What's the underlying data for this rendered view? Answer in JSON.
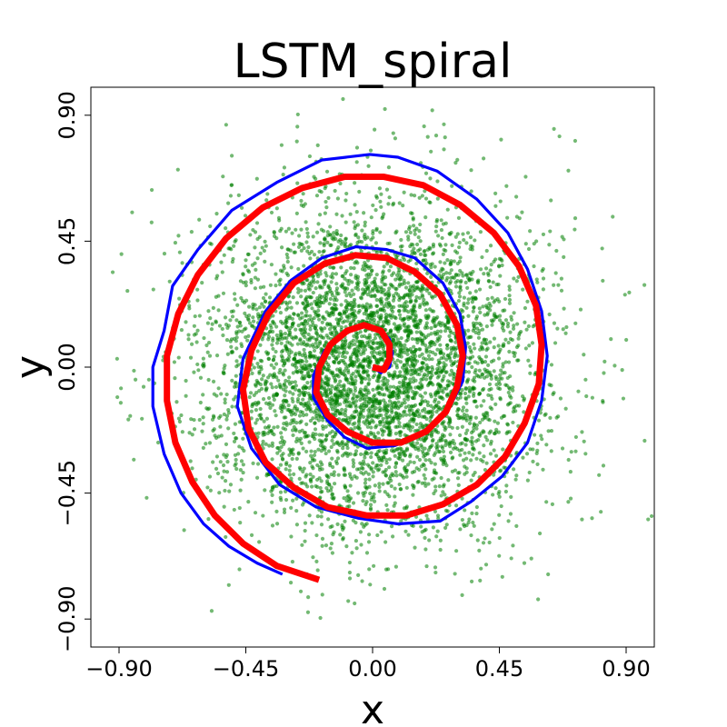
{
  "chart_data": {
    "type": "scatter",
    "title": "LSTM_spiral",
    "xlabel": "x",
    "ylabel": "y",
    "xlim": [
      -1.0,
      1.0
    ],
    "ylim": [
      -1.0,
      1.0
    ],
    "x_ticks": [
      -0.9,
      -0.45,
      0.0,
      0.45,
      0.9
    ],
    "x_tick_labels": [
      "−0.90",
      "−0.45",
      "0.00",
      "0.45",
      "0.90"
    ],
    "y_ticks": [
      -0.9,
      -0.45,
      0.0,
      0.45,
      0.9
    ],
    "y_tick_labels": [
      "−0.90",
      "−0.45",
      "0.00",
      "0.45",
      "0.90"
    ],
    "grid": false,
    "colors": {
      "points": "#008000",
      "predicted": "#0000ff",
      "true": "#ff0000"
    },
    "scatter_points": {
      "count": 5000,
      "distribution": "gaussian",
      "center": [
        0.0,
        0.0
      ],
      "std": [
        0.29,
        0.29
      ],
      "opacity": 0.55
    },
    "series": [
      {
        "type": "line",
        "color": "#0000ff",
        "points": [
          [
            0.0,
            0.0
          ],
          [
            0.03,
            -0.02
          ],
          [
            0.06,
            0.0
          ],
          [
            0.07,
            0.05
          ],
          [
            0.06,
            0.1
          ],
          [
            0.02,
            0.14
          ],
          [
            -0.04,
            0.15
          ],
          [
            -0.1,
            0.12
          ],
          [
            -0.17,
            0.06
          ],
          [
            -0.21,
            -0.03
          ],
          [
            -0.21,
            -0.11
          ],
          [
            -0.16,
            -0.19
          ],
          [
            -0.1,
            -0.25
          ],
          [
            -0.02,
            -0.29
          ],
          [
            0.08,
            -0.28
          ],
          [
            0.18,
            -0.24
          ],
          [
            0.27,
            -0.15
          ],
          [
            0.32,
            -0.05
          ],
          [
            0.33,
            0.07
          ],
          [
            0.31,
            0.19
          ],
          [
            0.25,
            0.3
          ],
          [
            0.15,
            0.39
          ],
          [
            0.05,
            0.42
          ],
          [
            -0.06,
            0.43
          ],
          [
            -0.18,
            0.39
          ],
          [
            -0.29,
            0.31
          ],
          [
            -0.38,
            0.2
          ],
          [
            -0.46,
            0.03
          ],
          [
            -0.48,
            -0.14
          ],
          [
            -0.43,
            -0.29
          ],
          [
            -0.33,
            -0.42
          ],
          [
            -0.2,
            -0.5
          ],
          [
            -0.05,
            -0.54
          ],
          [
            0.09,
            -0.56
          ],
          [
            0.24,
            -0.55
          ],
          [
            0.35,
            -0.48
          ],
          [
            0.46,
            -0.39
          ],
          [
            0.55,
            -0.27
          ],
          [
            0.6,
            -0.12
          ],
          [
            0.62,
            0.04
          ],
          [
            0.6,
            0.2
          ],
          [
            0.55,
            0.35
          ],
          [
            0.48,
            0.48
          ],
          [
            0.37,
            0.6
          ],
          [
            0.23,
            0.7
          ],
          [
            0.09,
            0.75
          ],
          [
            -0.01,
            0.76
          ],
          [
            -0.18,
            0.74
          ],
          [
            -0.34,
            0.66
          ],
          [
            -0.5,
            0.56
          ],
          [
            -0.62,
            0.42
          ],
          [
            -0.71,
            0.29
          ],
          [
            -0.74,
            0.13
          ],
          [
            -0.78,
            0.0
          ],
          [
            -0.78,
            -0.14
          ],
          [
            -0.74,
            -0.31
          ],
          [
            -0.68,
            -0.45
          ],
          [
            -0.6,
            -0.56
          ],
          [
            -0.51,
            -0.64
          ],
          [
            -0.41,
            -0.7
          ],
          [
            -0.32,
            -0.74
          ]
        ]
      },
      {
        "type": "line",
        "color": "#ff0000",
        "points": [
          [
            0.0,
            0.0
          ],
          [
            0.04,
            -0.01
          ],
          [
            0.06,
            0.03
          ],
          [
            0.06,
            0.08
          ],
          [
            0.03,
            0.13
          ],
          [
            -0.03,
            0.15
          ],
          [
            -0.09,
            0.13
          ],
          [
            -0.15,
            0.08
          ],
          [
            -0.19,
            0.0
          ],
          [
            -0.2,
            -0.09
          ],
          [
            -0.16,
            -0.17
          ],
          [
            -0.09,
            -0.23
          ],
          [
            0.0,
            -0.27
          ],
          [
            0.1,
            -0.27
          ],
          [
            0.19,
            -0.23
          ],
          [
            0.26,
            -0.16
          ],
          [
            0.3,
            -0.07
          ],
          [
            0.32,
            0.04
          ],
          [
            0.3,
            0.15
          ],
          [
            0.24,
            0.26
          ],
          [
            0.15,
            0.34
          ],
          [
            0.05,
            0.39
          ],
          [
            -0.06,
            0.4
          ],
          [
            -0.17,
            0.37
          ],
          [
            -0.28,
            0.3
          ],
          [
            -0.37,
            0.19
          ],
          [
            -0.43,
            0.06
          ],
          [
            -0.46,
            -0.08
          ],
          [
            -0.44,
            -0.22
          ],
          [
            -0.38,
            -0.34
          ],
          [
            -0.28,
            -0.43
          ],
          [
            -0.16,
            -0.5
          ],
          [
            -0.02,
            -0.53
          ],
          [
            0.12,
            -0.53
          ],
          [
            0.25,
            -0.49
          ],
          [
            0.37,
            -0.42
          ],
          [
            0.47,
            -0.32
          ],
          [
            0.54,
            -0.2
          ],
          [
            0.59,
            -0.06
          ],
          [
            0.6,
            0.08
          ],
          [
            0.58,
            0.22
          ],
          [
            0.52,
            0.36
          ],
          [
            0.43,
            0.48
          ],
          [
            0.31,
            0.58
          ],
          [
            0.18,
            0.65
          ],
          [
            0.04,
            0.68
          ],
          [
            -0.1,
            0.68
          ],
          [
            -0.25,
            0.64
          ],
          [
            -0.39,
            0.57
          ],
          [
            -0.52,
            0.46
          ],
          [
            -0.62,
            0.33
          ],
          [
            -0.69,
            0.19
          ],
          [
            -0.73,
            0.04
          ],
          [
            -0.73,
            -0.12
          ],
          [
            -0.7,
            -0.27
          ],
          [
            -0.64,
            -0.41
          ],
          [
            -0.56,
            -0.53
          ],
          [
            -0.46,
            -0.63
          ],
          [
            -0.34,
            -0.71
          ],
          [
            -0.19,
            -0.76
          ]
        ]
      }
    ]
  }
}
